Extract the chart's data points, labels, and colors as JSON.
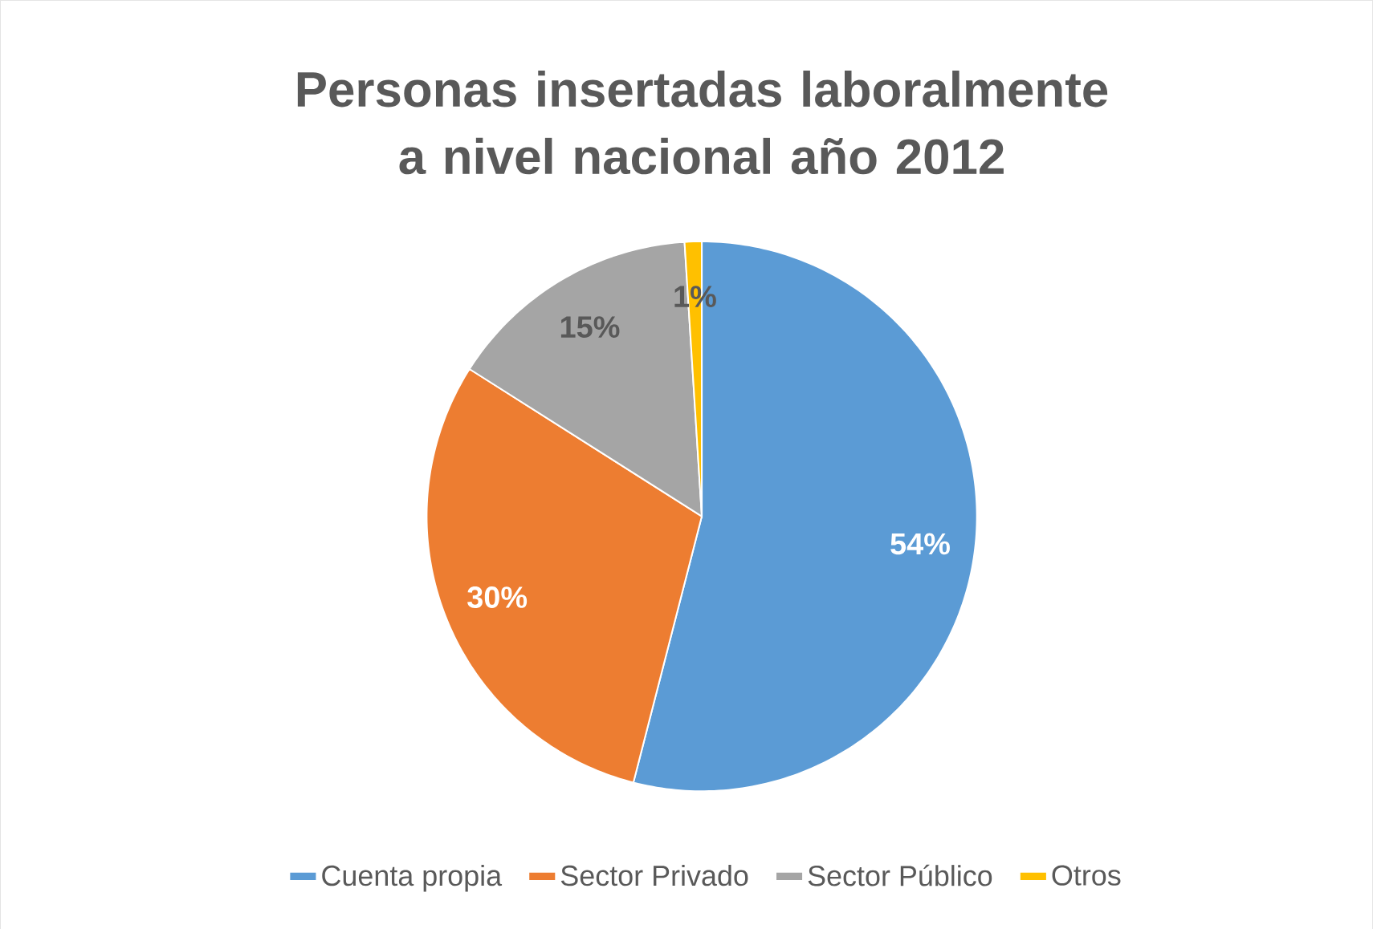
{
  "chart_data": {
    "type": "pie",
    "title": "Personas insertadas laboralmente a nivel nacional año 2012",
    "categories": [
      "Cuenta propia",
      "Sector Privado",
      "Sector Público",
      "Otros"
    ],
    "values": [
      54,
      30,
      15,
      1
    ],
    "colors": [
      "#5b9bd5",
      "#ed7d31",
      "#a5a5a5",
      "#ffc000"
    ],
    "value_labels": [
      "54%",
      "30%",
      "15%",
      "1%"
    ],
    "legend": "bottom"
  }
}
